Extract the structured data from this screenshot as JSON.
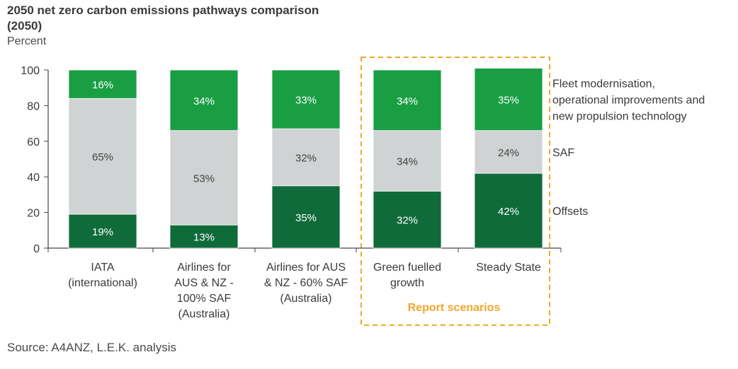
{
  "title": "2050 net zero carbon emissions pathways comparison (2050)",
  "unit_label": "Percent",
  "source": "Source: A4ANZ, L.E.K. analysis",
  "colors": {
    "offsets": "#0f6b3a",
    "saf": "#d0d3d3",
    "fleet": "#1a9e44",
    "highlight": "#f2a72c"
  },
  "report_scenarios_label": "Report scenarios",
  "chart_data": {
    "type": "bar",
    "stacked": true,
    "title": "2050 net zero carbon emissions pathways comparison (2050)",
    "ylabel": "Percent",
    "ylim": [
      0,
      100
    ],
    "yticks": [
      0,
      20,
      40,
      60,
      80,
      100
    ],
    "categories": [
      [
        "IATA",
        "(international)"
      ],
      [
        "Airlines for",
        "AUS & NZ -",
        "100% SAF",
        "(Australia)"
      ],
      [
        "Airlines for AUS",
        "& NZ - 60% SAF",
        "(Australia)"
      ],
      [
        "Green fuelled",
        "growth"
      ],
      [
        "Steady State"
      ]
    ],
    "series": [
      {
        "name": "Offsets",
        "values": [
          19,
          13,
          35,
          32,
          42
        ],
        "labels": [
          "19%",
          "13%",
          "35%",
          "32%",
          "42%"
        ]
      },
      {
        "name": "SAF",
        "values": [
          65,
          53,
          32,
          34,
          24
        ],
        "labels": [
          "65%",
          "53%",
          "32%",
          "34%",
          "24%"
        ]
      },
      {
        "name": "Fleet modernisation, operational improvements and new propulsion technology",
        "values": [
          16,
          34,
          33,
          34,
          35
        ],
        "labels": [
          "16%",
          "34%",
          "33%",
          "34%",
          "35%"
        ]
      }
    ],
    "legend": [
      {
        "series": 2,
        "lines": [
          "Fleet modernisation,",
          "operational improvements and",
          "new propulsion technology"
        ]
      },
      {
        "series": 1,
        "lines": [
          "SAF"
        ]
      },
      {
        "series": 0,
        "lines": [
          "Offsets"
        ]
      }
    ],
    "highlighted_categories": [
      3,
      4
    ]
  }
}
